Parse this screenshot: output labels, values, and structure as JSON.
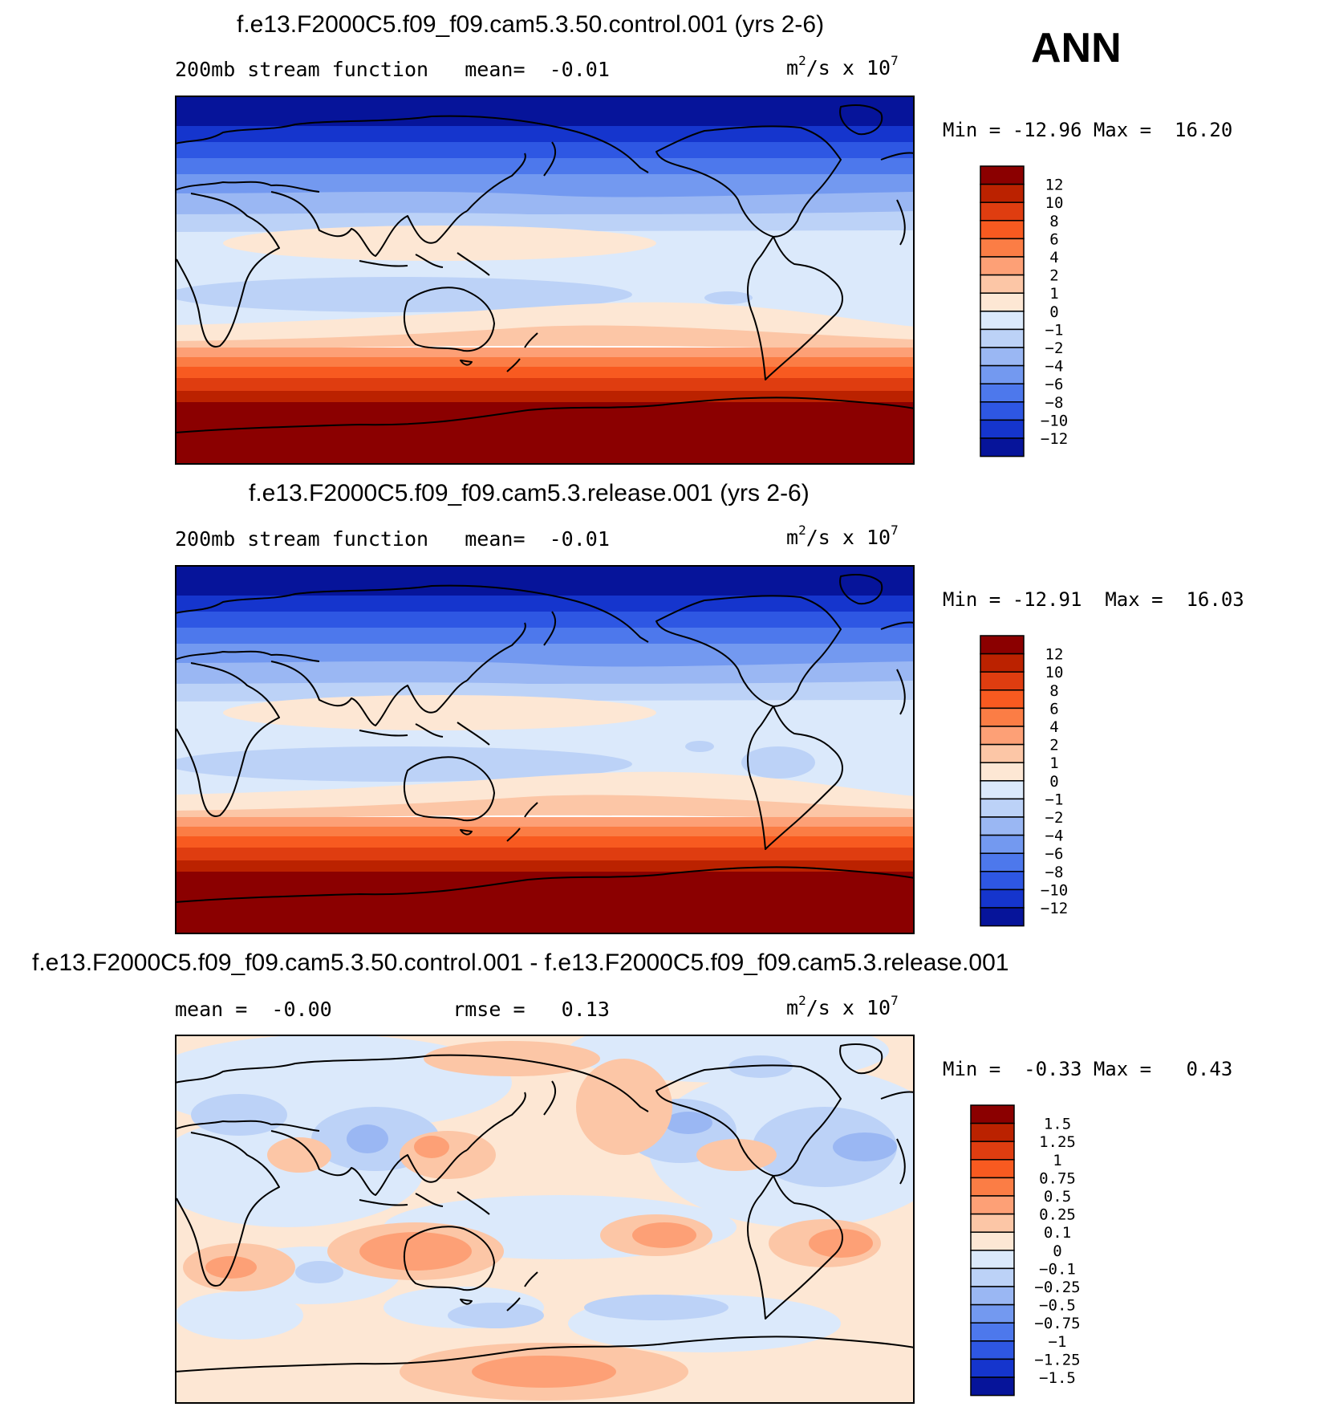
{
  "season": "ANN",
  "units": {
    "base": "m",
    "exp1": "2",
    "mid": "/s x 10",
    "exp2": "7"
  },
  "chart_data": [
    {
      "type": "heatmap",
      "title": "f.e13.F2000C5.f09_f09.cam5.3.50.control.001 (yrs 2-6)",
      "variable": "200mb stream function",
      "mean_label": "mean=",
      "mean_value": "-0.01",
      "min_label": "Min =",
      "min_value": "-12.96",
      "max_label": "Max =",
      "max_value": "16.20",
      "levels": [
        "12",
        "10",
        "8",
        "6",
        "4",
        "2",
        "1",
        "0",
        "-1",
        "-2",
        "-4",
        "-6",
        "-8",
        "-10",
        "-12"
      ],
      "colors": [
        "#8b0000",
        "#bb2200",
        "#df3d10",
        "#f85a20",
        "#fb7d45",
        "#fda076",
        "#fcc6a6",
        "#fde7d4",
        "#dbe9fb",
        "#bcd2f7",
        "#9ab7f3",
        "#7399f0",
        "#4d78ec",
        "#2e57e3",
        "#1535cd",
        "#06149a"
      ]
    },
    {
      "type": "heatmap",
      "title": "f.e13.F2000C5.f09_f09.cam5.3.release.001 (yrs 2-6)",
      "variable": "200mb stream function",
      "mean_label": "mean=",
      "mean_value": "-0.01",
      "min_label": "Min =",
      "min_value": "-12.91",
      "max_label": "Max =",
      "max_value": "16.03",
      "levels": [
        "12",
        "10",
        "8",
        "6",
        "4",
        "2",
        "1",
        "0",
        "-1",
        "-2",
        "-4",
        "-6",
        "-8",
        "-10",
        "-12"
      ],
      "colors": [
        "#8b0000",
        "#bb2200",
        "#df3d10",
        "#f85a20",
        "#fb7d45",
        "#fda076",
        "#fcc6a6",
        "#fde7d4",
        "#dbe9fb",
        "#bcd2f7",
        "#9ab7f3",
        "#7399f0",
        "#4d78ec",
        "#2e57e3",
        "#1535cd",
        "#06149a"
      ]
    },
    {
      "type": "heatmap",
      "title": "f.e13.F2000C5.f09_f09.cam5.3.50.control.001 - f.e13.F2000C5.f09_f09.cam5.3.release.001",
      "mean_label": "mean =",
      "mean_value": "-0.00",
      "rmse_label": "rmse =",
      "rmse_value": "0.13",
      "min_label": "Min =",
      "min_value": "-0.33",
      "max_label": "Max =",
      "max_value": "0.43",
      "levels": [
        "1.5",
        "1.25",
        "1",
        "0.75",
        "0.5",
        "0.25",
        "0.1",
        "0",
        "-0.1",
        "-0.25",
        "-0.5",
        "-0.75",
        "-1",
        "-1.25",
        "-1.5"
      ],
      "colors": [
        "#8b0000",
        "#bb2200",
        "#df3d10",
        "#f85a20",
        "#fb7d45",
        "#fda076",
        "#fcc6a6",
        "#fde7d4",
        "#dbe9fb",
        "#bcd2f7",
        "#9ab7f3",
        "#7399f0",
        "#4d78ec",
        "#2e57e3",
        "#1535cd",
        "#06149a"
      ]
    }
  ]
}
